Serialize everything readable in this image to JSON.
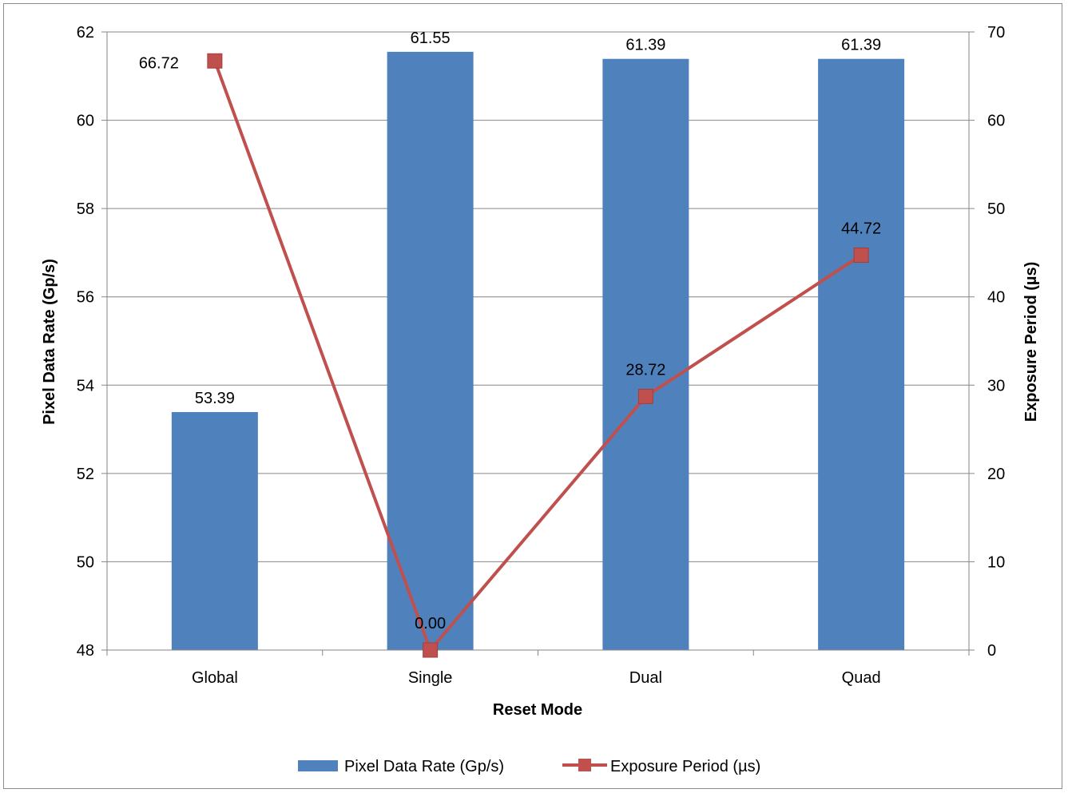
{
  "chart_data": {
    "type": "bar",
    "categories": [
      "Global",
      "Single",
      "Dual",
      "Quad"
    ],
    "series": [
      {
        "name": "Pixel Data Rate (Gp/s)",
        "kind": "bar",
        "axis": "left",
        "color": "#4f81bd",
        "values": [
          53.39,
          61.55,
          61.39,
          61.39
        ],
        "labels": [
          "53.39",
          "61.55",
          "61.39",
          "61.39"
        ]
      },
      {
        "name": "Exposure Period (µs)",
        "kind": "line",
        "axis": "right",
        "color": "#c0504d",
        "marker": "square",
        "values": [
          66.72,
          0.0,
          28.72,
          44.72
        ],
        "labels": [
          "66.72",
          "0.00",
          "28.72",
          "44.72"
        ]
      }
    ],
    "xlabel": "Reset Mode",
    "ylabel": "Pixel Data Rate (Gp/s)",
    "y2label": "Exposure Period (µs)",
    "ylim": [
      48,
      62
    ],
    "yticks": [
      "48",
      "50",
      "52",
      "54",
      "56",
      "58",
      "60",
      "62"
    ],
    "y2lim": [
      0,
      70
    ],
    "y2ticks": [
      "0",
      "10",
      "20",
      "30",
      "40",
      "50",
      "60",
      "70"
    ],
    "grid": true,
    "legend_position": "bottom"
  }
}
